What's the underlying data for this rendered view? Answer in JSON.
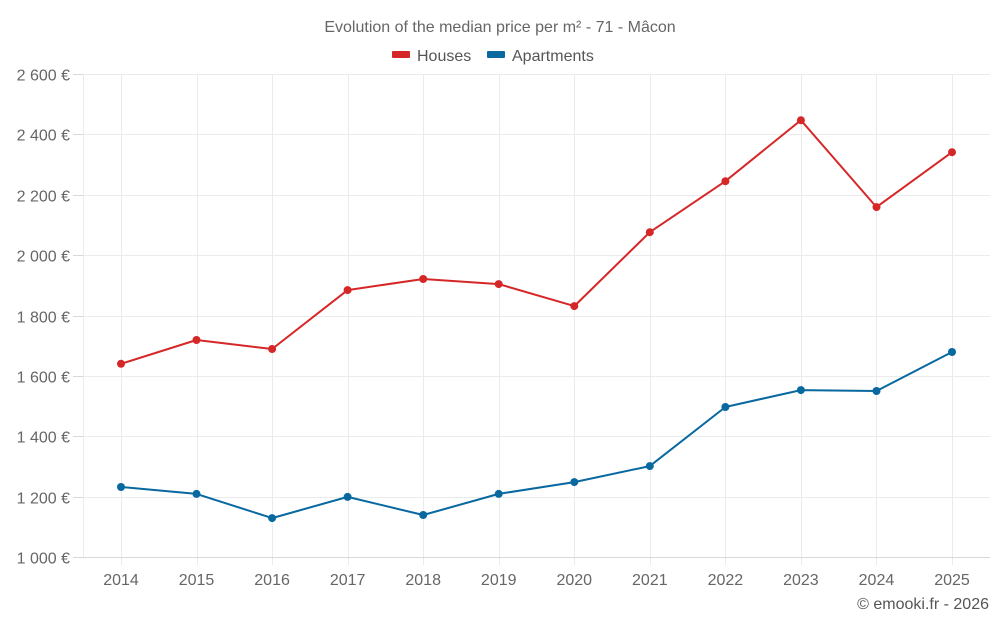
{
  "chart_data": {
    "type": "line",
    "title": "Evolution of the median price per m² - 71 - Mâcon",
    "xlabel": "",
    "ylabel": "",
    "x": [
      "2014",
      "2015",
      "2016",
      "2017",
      "2018",
      "2019",
      "2020",
      "2021",
      "2022",
      "2023",
      "2024",
      "2025"
    ],
    "ylim": [
      1000,
      2600
    ],
    "yticks": [
      1000,
      1200,
      1400,
      1600,
      1800,
      2000,
      2200,
      2400,
      2600
    ],
    "ytick_labels": [
      "1 000 €",
      "1 200 €",
      "1 400 €",
      "1 600 €",
      "1 800 €",
      "2 000 €",
      "2 200 €",
      "2 400 €",
      "2 600 €"
    ],
    "grid": true,
    "legend_position": "top-center",
    "series": [
      {
        "name": "Houses",
        "color": "#d62728",
        "values": [
          1640,
          1719,
          1689,
          1884,
          1921,
          1904,
          1831,
          2076,
          2245,
          2447,
          2159,
          2341
        ]
      },
      {
        "name": "Apartments",
        "color": "#0868a0",
        "values": [
          1232,
          1209,
          1129,
          1199,
          1139,
          1209,
          1248,
          1301,
          1497,
          1553,
          1550,
          1679
        ]
      }
    ],
    "credit": "© emooki.fr - 2026"
  }
}
